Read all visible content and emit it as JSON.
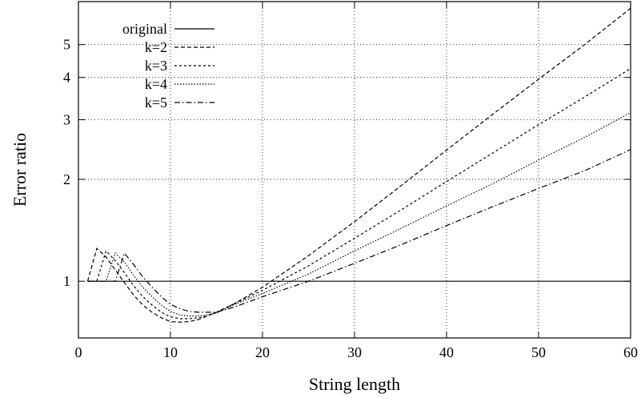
{
  "chart_data": {
    "type": "line",
    "xlabel": "String length",
    "ylabel": "Error ratio",
    "xlim": [
      0,
      60
    ],
    "ylim": [
      0.68,
      6.7
    ],
    "yscale": "log",
    "grid": true,
    "legend_position": "top-left",
    "x_ticks": [
      0,
      10,
      20,
      30,
      40,
      50,
      60
    ],
    "y_ticks": [
      1,
      2,
      3,
      4,
      5
    ],
    "series": [
      {
        "name": "original",
        "x": [
          1,
          60
        ],
        "y": [
          1.0,
          1.0
        ]
      },
      {
        "name": "k=2",
        "x": [
          1,
          2,
          3,
          4,
          5,
          6,
          7,
          8,
          9,
          10,
          11,
          12,
          13,
          14,
          15,
          17,
          20,
          25,
          30,
          35,
          40,
          45,
          50,
          55,
          60
        ],
        "y": [
          1.0,
          1.25,
          1.18,
          1.08,
          0.99,
          0.91,
          0.85,
          0.81,
          0.78,
          0.76,
          0.757,
          0.76,
          0.77,
          0.79,
          0.81,
          0.86,
          0.96,
          1.19,
          1.5,
          1.91,
          2.44,
          3.11,
          3.95,
          5.0,
          6.4
        ]
      },
      {
        "name": "k=3",
        "x": [
          1,
          2,
          3,
          4,
          5,
          6,
          7,
          8,
          9,
          10,
          11,
          12,
          13,
          14,
          15,
          17,
          20,
          25,
          30,
          35,
          40,
          45,
          50,
          55,
          60
        ],
        "y": [
          1.0,
          1.0,
          1.23,
          1.15,
          1.06,
          0.97,
          0.9,
          0.85,
          0.81,
          0.785,
          0.775,
          0.775,
          0.78,
          0.79,
          0.81,
          0.86,
          0.94,
          1.11,
          1.34,
          1.62,
          1.97,
          2.39,
          2.9,
          3.5,
          4.25
        ]
      },
      {
        "name": "k=4",
        "x": [
          1,
          2,
          3,
          4,
          5,
          6,
          7,
          8,
          9,
          10,
          11,
          12,
          13,
          14,
          15,
          17,
          20,
          25,
          30,
          35,
          40,
          45,
          50,
          55,
          60
        ],
        "y": [
          1.0,
          1.0,
          1.0,
          1.21,
          1.14,
          1.04,
          0.96,
          0.9,
          0.85,
          0.815,
          0.795,
          0.79,
          0.79,
          0.795,
          0.805,
          0.855,
          0.92,
          1.05,
          1.23,
          1.43,
          1.67,
          1.94,
          2.28,
          2.66,
          3.15
        ]
      },
      {
        "name": "k=5",
        "x": [
          1,
          2,
          3,
          4,
          5,
          6,
          7,
          8,
          9,
          10,
          11,
          12,
          13,
          14,
          15,
          17,
          20,
          25,
          30,
          35,
          40,
          45,
          50,
          55,
          60
        ],
        "y": [
          1.0,
          1.0,
          1.0,
          1.0,
          1.21,
          1.12,
          1.03,
          0.96,
          0.9,
          0.855,
          0.83,
          0.815,
          0.81,
          0.81,
          0.81,
          0.84,
          0.9,
          1.0,
          1.13,
          1.28,
          1.46,
          1.66,
          1.88,
          2.12,
          2.45
        ]
      }
    ]
  }
}
